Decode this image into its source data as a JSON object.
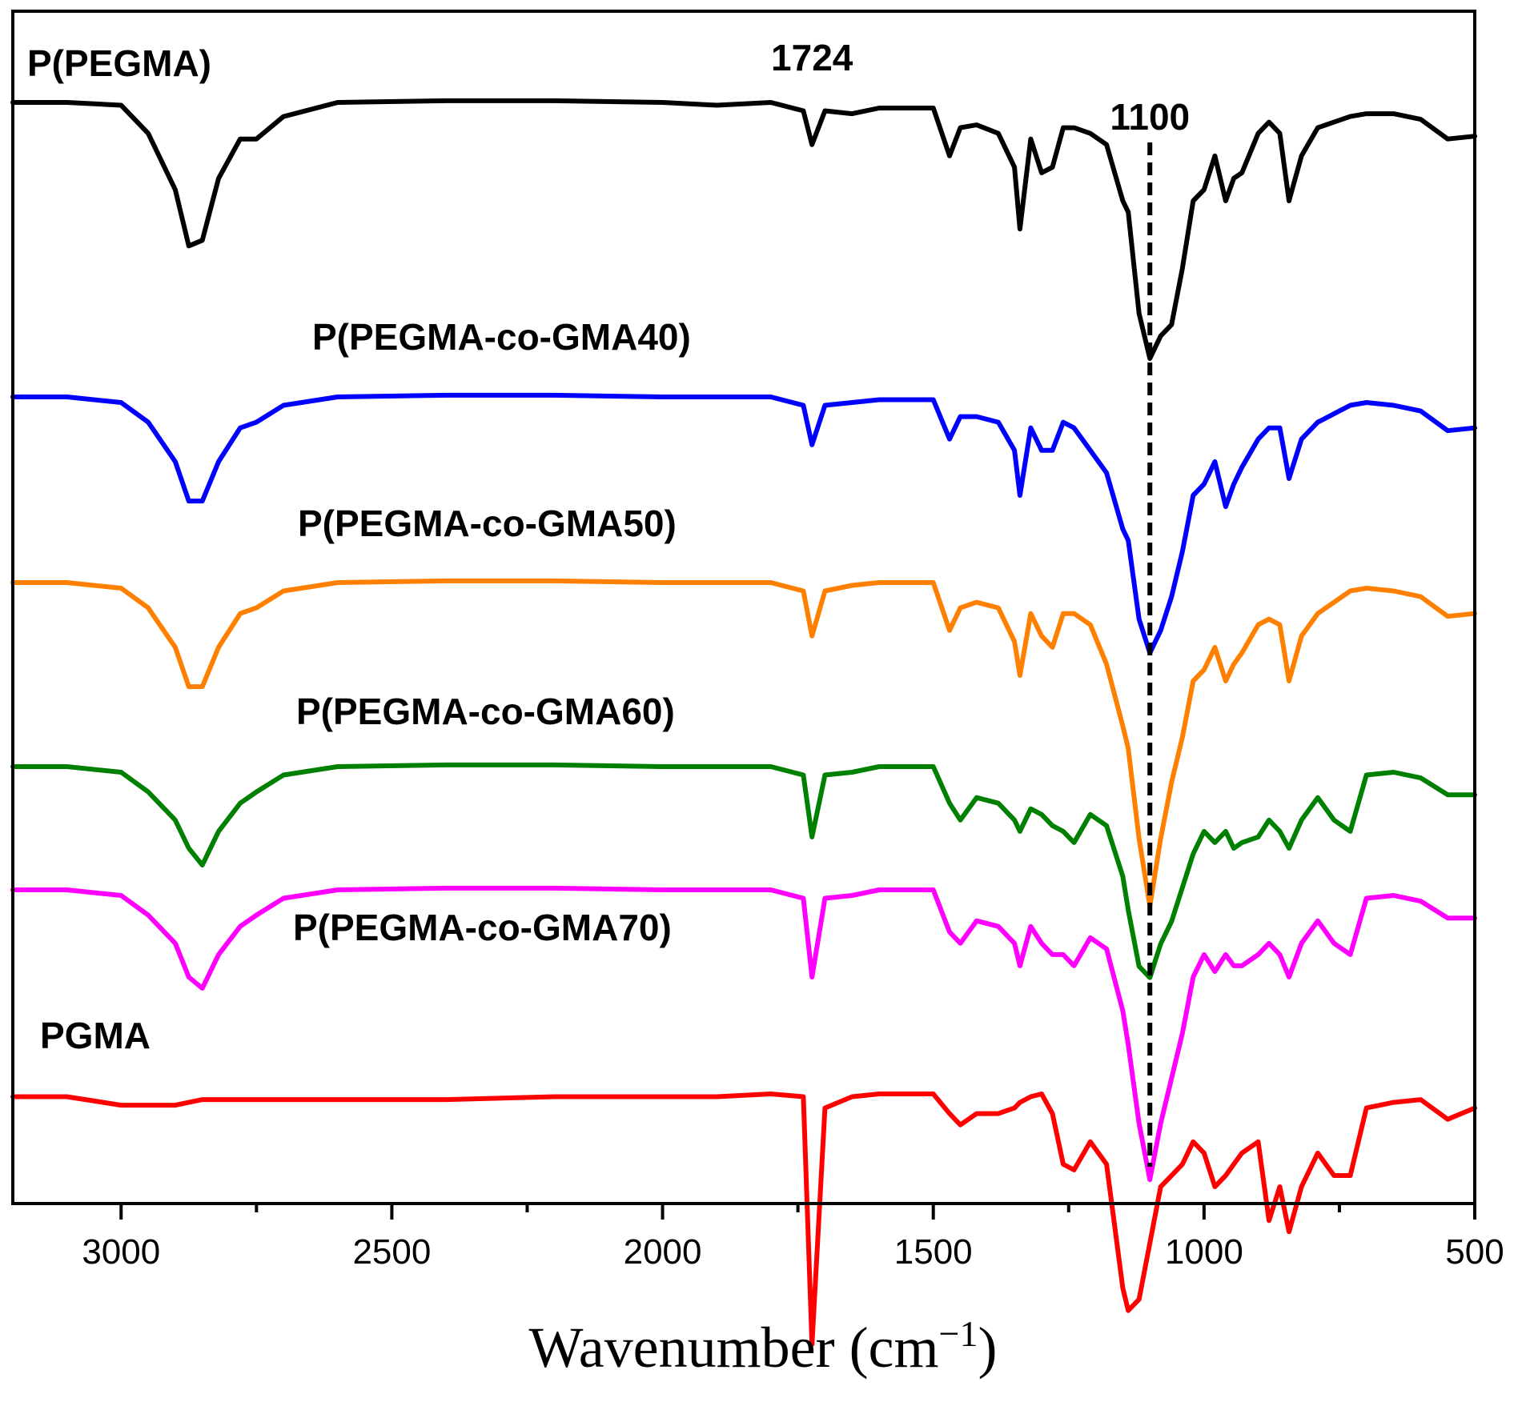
{
  "chart_data": {
    "type": "line",
    "title": "",
    "xlabel": "Wavenumber (cm",
    "xlabel_superscript": "−1",
    "xlabel_close": ")",
    "ylabel": "",
    "xlim": [
      3200,
      500
    ],
    "x_reversed": true,
    "ylim": [
      0,
      1
    ],
    "y_ticks_shown": false,
    "x_ticks_major": [
      3000,
      2500,
      2000,
      1500,
      1000,
      500
    ],
    "x_ticks_major_labels": [
      "3000",
      "2500",
      "2000",
      "1500",
      "1000",
      "500"
    ],
    "x_ticks_minor": [
      2750,
      2250,
      1750,
      1250,
      750
    ],
    "annotations": [
      {
        "name": "peak-1724",
        "text": "1724",
        "x": 1724
      },
      {
        "name": "peak-1100",
        "text": "1100",
        "x": 1100,
        "dashed_line": true
      }
    ],
    "baseline_x": [
      3200,
      3100,
      3000,
      2950,
      2900,
      2875,
      2850,
      2820,
      2780,
      2750,
      2700,
      2600,
      2400,
      2200,
      2000,
      1900,
      1800,
      1740,
      1724,
      1700,
      1650,
      1600,
      1500,
      1470,
      1450,
      1420,
      1380,
      1350,
      1340,
      1320,
      1300,
      1280,
      1260,
      1240,
      1210,
      1180,
      1150,
      1140,
      1120,
      1100,
      1080,
      1060,
      1040,
      1020,
      1000,
      980,
      960,
      945,
      930,
      900,
      880,
      860,
      843,
      820,
      790,
      760,
      730,
      700,
      650,
      600,
      550,
      500
    ],
    "series": [
      {
        "name": "P(PEGMA)",
        "color": "#000000",
        "y": [
          0.975,
          0.975,
          0.97,
          0.92,
          0.82,
          0.72,
          0.73,
          0.84,
          0.91,
          0.91,
          0.95,
          0.975,
          0.978,
          0.978,
          0.975,
          0.97,
          0.975,
          0.96,
          0.9,
          0.96,
          0.955,
          0.965,
          0.965,
          0.88,
          0.93,
          0.935,
          0.92,
          0.86,
          0.75,
          0.91,
          0.85,
          0.86,
          0.93,
          0.93,
          0.92,
          0.9,
          0.8,
          0.78,
          0.6,
          0.52,
          0.56,
          0.58,
          0.68,
          0.8,
          0.82,
          0.88,
          0.8,
          0.84,
          0.85,
          0.92,
          0.94,
          0.92,
          0.8,
          0.88,
          0.93,
          0.94,
          0.95,
          0.955,
          0.955,
          0.945,
          0.91,
          0.915
        ]
      },
      {
        "name": "P(PEGMA-co-GMA40)",
        "color": "#0000ff",
        "y": [
          0.975,
          0.975,
          0.965,
          0.93,
          0.86,
          0.79,
          0.79,
          0.86,
          0.92,
          0.93,
          0.96,
          0.975,
          0.978,
          0.978,
          0.975,
          0.975,
          0.975,
          0.96,
          0.89,
          0.96,
          0.965,
          0.97,
          0.97,
          0.9,
          0.94,
          0.94,
          0.93,
          0.88,
          0.8,
          0.92,
          0.88,
          0.88,
          0.93,
          0.92,
          0.88,
          0.84,
          0.74,
          0.72,
          0.58,
          0.52,
          0.56,
          0.62,
          0.7,
          0.8,
          0.82,
          0.86,
          0.78,
          0.82,
          0.85,
          0.9,
          0.92,
          0.92,
          0.83,
          0.9,
          0.93,
          0.945,
          0.96,
          0.965,
          0.96,
          0.95,
          0.915,
          0.92
        ]
      },
      {
        "name": "P(PEGMA-co-GMA50)",
        "color": "#ff8000",
        "y": [
          0.975,
          0.975,
          0.965,
          0.93,
          0.86,
          0.79,
          0.79,
          0.86,
          0.92,
          0.93,
          0.96,
          0.975,
          0.978,
          0.978,
          0.975,
          0.975,
          0.975,
          0.96,
          0.88,
          0.96,
          0.97,
          0.975,
          0.975,
          0.89,
          0.93,
          0.94,
          0.93,
          0.87,
          0.81,
          0.92,
          0.88,
          0.86,
          0.92,
          0.92,
          0.9,
          0.83,
          0.72,
          0.68,
          0.52,
          0.4,
          0.52,
          0.62,
          0.7,
          0.8,
          0.82,
          0.86,
          0.8,
          0.83,
          0.85,
          0.9,
          0.91,
          0.9,
          0.8,
          0.88,
          0.92,
          0.94,
          0.96,
          0.965,
          0.96,
          0.95,
          0.915,
          0.92
        ]
      },
      {
        "name": "P(PEGMA-co-GMA60)",
        "color": "#008000",
        "y": [
          0.975,
          0.975,
          0.965,
          0.93,
          0.88,
          0.83,
          0.8,
          0.86,
          0.91,
          0.93,
          0.96,
          0.975,
          0.978,
          0.978,
          0.975,
          0.975,
          0.975,
          0.96,
          0.85,
          0.96,
          0.965,
          0.975,
          0.975,
          0.91,
          0.88,
          0.92,
          0.91,
          0.88,
          0.86,
          0.9,
          0.89,
          0.87,
          0.86,
          0.84,
          0.89,
          0.87,
          0.78,
          0.72,
          0.62,
          0.6,
          0.66,
          0.7,
          0.76,
          0.82,
          0.86,
          0.84,
          0.86,
          0.83,
          0.84,
          0.85,
          0.88,
          0.86,
          0.83,
          0.88,
          0.92,
          0.88,
          0.86,
          0.96,
          0.965,
          0.955,
          0.925,
          0.925
        ]
      },
      {
        "name": "P(PEGMA-co-GMA70)",
        "color": "#ff00ff",
        "y": [
          0.975,
          0.975,
          0.965,
          0.93,
          0.88,
          0.82,
          0.8,
          0.86,
          0.91,
          0.93,
          0.96,
          0.975,
          0.978,
          0.978,
          0.975,
          0.975,
          0.975,
          0.96,
          0.82,
          0.96,
          0.965,
          0.975,
          0.975,
          0.9,
          0.88,
          0.92,
          0.91,
          0.88,
          0.84,
          0.91,
          0.88,
          0.86,
          0.86,
          0.84,
          0.89,
          0.87,
          0.76,
          0.7,
          0.56,
          0.46,
          0.56,
          0.64,
          0.72,
          0.82,
          0.86,
          0.83,
          0.86,
          0.84,
          0.84,
          0.86,
          0.88,
          0.86,
          0.82,
          0.88,
          0.92,
          0.88,
          0.86,
          0.96,
          0.965,
          0.955,
          0.925,
          0.925
        ]
      },
      {
        "name": "PGMA",
        "color": "#ff0000",
        "y": [
          0.96,
          0.96,
          0.945,
          0.945,
          0.945,
          0.95,
          0.955,
          0.955,
          0.955,
          0.955,
          0.955,
          0.955,
          0.955,
          0.96,
          0.96,
          0.96,
          0.965,
          0.96,
          0.52,
          0.94,
          0.96,
          0.965,
          0.965,
          0.93,
          0.91,
          0.93,
          0.93,
          0.94,
          0.95,
          0.96,
          0.965,
          0.93,
          0.84,
          0.83,
          0.88,
          0.84,
          0.62,
          0.58,
          0.6,
          0.7,
          0.8,
          0.82,
          0.84,
          0.88,
          0.86,
          0.8,
          0.82,
          0.84,
          0.86,
          0.88,
          0.74,
          0.8,
          0.72,
          0.8,
          0.86,
          0.82,
          0.82,
          0.94,
          0.95,
          0.955,
          0.92,
          0.94
        ]
      }
    ]
  }
}
